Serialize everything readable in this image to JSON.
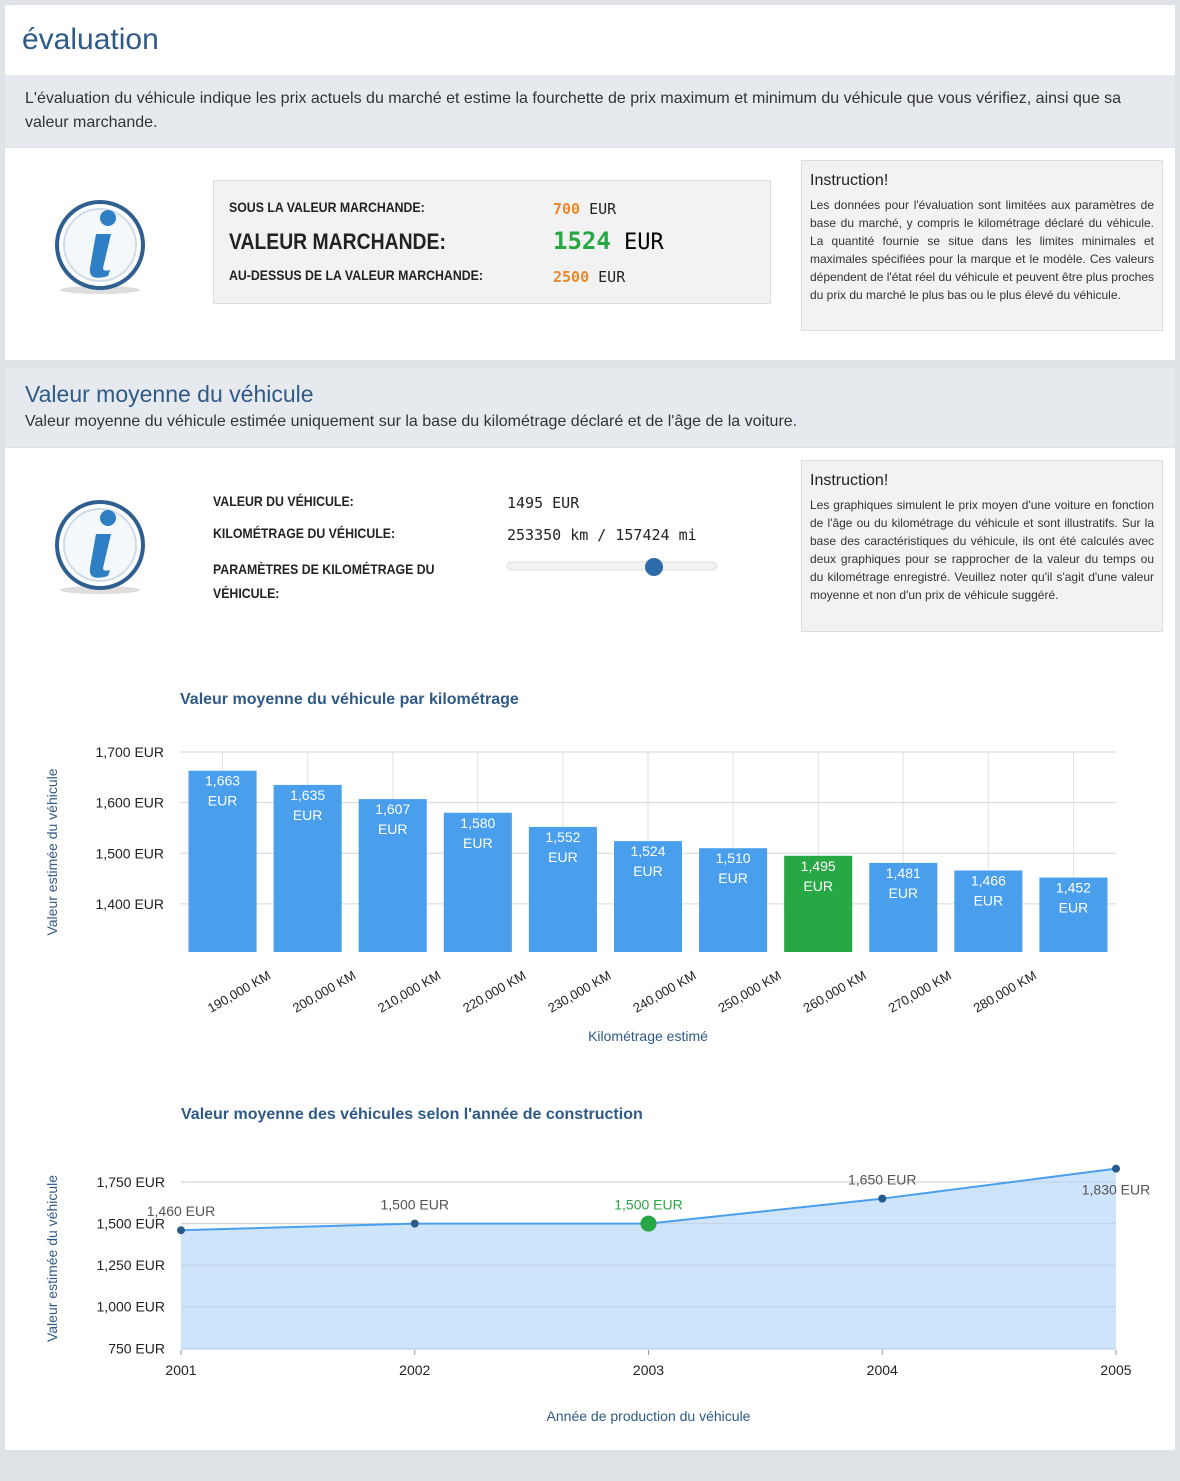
{
  "header": {
    "title": "évaluation",
    "description": "L'évaluation du véhicule indique les prix actuels du marché et estime la fourchette de prix maximum et minimum du véhicule que vous vérifiez, ainsi que sa valeur marchande."
  },
  "valuation": {
    "rows": [
      {
        "label": "SOUS LA VALEUR MARCHANDE:",
        "value": 700,
        "unit": "EUR"
      },
      {
        "label": "VALEUR MARCHANDE:",
        "value": 1524,
        "unit": "EUR"
      },
      {
        "label": "AU-DESSUS DE LA VALEUR MARCHANDE:",
        "value": 2500,
        "unit": "EUR"
      }
    ],
    "instruction": {
      "title": "Instruction!",
      "text": "Les données pour l'évaluation sont limitées aux paramètres de base du marché, y compris le kilométrage déclaré du véhicule. La quantité fournie se situe dans les limites minimales et maximales spécifiées pour la marque et le modèle. Ces valeurs dépendent de l'état réel du véhicule et peuvent être plus proches du prix du marché le plus bas ou le plus élevé du véhicule."
    }
  },
  "average": {
    "title": "Valeur moyenne du véhicule",
    "subtitle": "Valeur moyenne du véhicule estimée uniquement sur la base du kilométrage déclaré et de l'âge de la voiture.",
    "rows": [
      {
        "label": "VALEUR DU VÉHICULE:",
        "value": "1495 EUR"
      },
      {
        "label": "KILOMÉTRAGE DU VÉHICULE:",
        "value": "253350 km / 157424 mi"
      },
      {
        "label": "PARAMÈTRES DE KILOMÉTRAGE DU VÉHICULE:"
      }
    ],
    "instruction": {
      "title": "Instruction!",
      "text": "Les graphiques simulent le prix moyen d'une voiture en fonction de l'âge ou du kilométrage du véhicule et sont illustratifs. Sur la base des caractéristiques du véhicule, ils ont été calculés avec deux graphiques pour se rapprocher de la valeur du temps ou du kilométrage enregistré. Veuillez noter qu'il s'agit d'une valeur moyenne et non d'un prix de véhicule suggéré."
    }
  },
  "chart_data": [
    {
      "type": "bar",
      "title": "Valeur moyenne du véhicule par kilométrage",
      "y_label": "Valeur estimée du véhicule",
      "x_label": "Kilométrage estimé",
      "categories": [
        null,
        "190,000 KM",
        "200,000 KM",
        "210,000 KM",
        "220,000 KM",
        "230,000 KM",
        "240,000 KM",
        "250,000 KM",
        "260,000 KM",
        "270,000 KM",
        "280,000 KM"
      ],
      "values": [
        1663,
        1635,
        1607,
        1580,
        1552,
        1524,
        1510,
        1495,
        1481,
        1466,
        1452
      ],
      "value_labels": [
        "1,663 EUR",
        "1,635 EUR",
        "1,607 EUR",
        "1,580 EUR",
        "1,552 EUR",
        "1,524 EUR",
        "1,510 EUR",
        "1,495 EUR",
        "1,481 EUR",
        "1,466 EUR",
        "1,452 EUR"
      ],
      "colors": [
        "#4a9fec",
        "#4a9fec",
        "#4a9fec",
        "#4a9fec",
        "#4a9fec",
        "#4a9fec",
        "#4a9fec",
        "#28a745",
        "#4a9fec",
        "#4a9fec",
        "#4a9fec"
      ],
      "ylim": [
        1305,
        1700
      ],
      "yticks": [
        {
          "value": 1400,
          "label": "1,400 EUR"
        },
        {
          "value": 1500,
          "label": "1,500 EUR"
        },
        {
          "value": 1600,
          "label": "1,600 EUR"
        },
        {
          "value": 1700,
          "label": "1,700 EUR"
        }
      ],
      "grid": true
    },
    {
      "type": "area",
      "title": "Valeur moyenne des véhicules selon l'année de construction",
      "y_label": "Valeur estimée du véhicule",
      "x_label": "Année de production du véhicule",
      "x": [
        2001,
        2002,
        2003,
        2004,
        2005
      ],
      "values": [
        1460,
        1500,
        1500,
        1650,
        1830
      ],
      "value_labels": [
        "1,460 EUR",
        "1,500 EUR",
        "1,500 EUR",
        "1,650 EUR",
        "1,830 EUR"
      ],
      "color": "#4a9fec",
      "fill": "#c9e1f9",
      "point_colors": [
        "#2a5a8a",
        "#2a5a8a",
        "#28a745",
        "#2a5a8a",
        "#2a5a8a"
      ],
      "xlim": [
        2001,
        2005
      ],
      "xticks": [
        2001,
        2002,
        2003,
        2004,
        2005
      ],
      "ylim": [
        740,
        1840
      ],
      "yticks": [
        {
          "value": 750,
          "label": "750 EUR"
        },
        {
          "value": 1000,
          "label": "1,000 EUR"
        },
        {
          "value": 1250,
          "label": "1,250 EUR"
        },
        {
          "value": 1500,
          "label": "1,500 EUR"
        },
        {
          "value": 1750,
          "label": "1,750 EUR"
        }
      ],
      "grid": true
    }
  ]
}
